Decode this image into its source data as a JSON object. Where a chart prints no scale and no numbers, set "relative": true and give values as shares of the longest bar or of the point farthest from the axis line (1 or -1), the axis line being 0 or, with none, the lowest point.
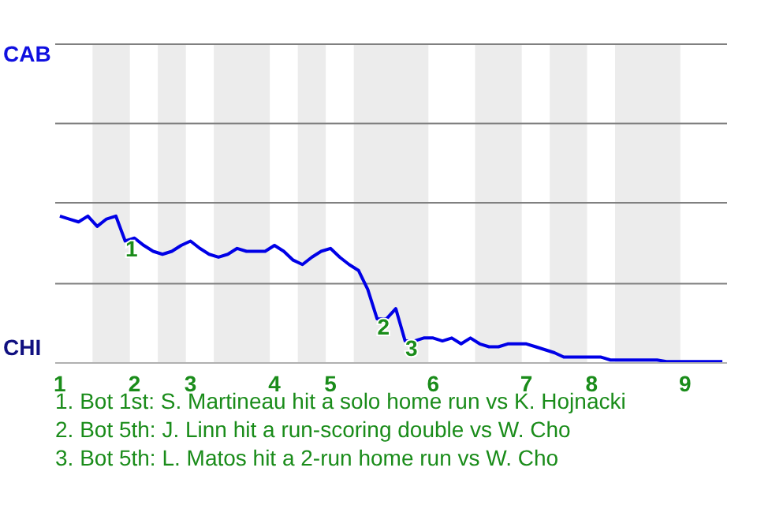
{
  "chart_data": {
    "type": "line",
    "relative": true,
    "categories": [
      "1",
      null,
      null,
      null,
      null,
      null,
      null,
      null,
      "2",
      null,
      null,
      null,
      null,
      null,
      "3",
      null,
      null,
      null,
      null,
      null,
      null,
      null,
      null,
      "4",
      null,
      null,
      null,
      null,
      null,
      "5",
      null,
      null,
      null,
      null,
      null,
      null,
      null,
      null,
      null,
      null,
      "6",
      null,
      null,
      null,
      null,
      null,
      null,
      null,
      null,
      null,
      "7",
      null,
      null,
      null,
      null,
      null,
      null,
      "8",
      null,
      null,
      null,
      null,
      null,
      null,
      null,
      null,
      null,
      "9",
      null,
      null,
      null,
      null
    ],
    "marker": "none",
    "line_style": "solid",
    "ref_lines": [
      {
        "axis": "y",
        "value": 0.54,
        "color": "#808080"
      },
      {
        "axis": "y",
        "value": 1.09,
        "color": "#808080"
      },
      {
        "axis": "y",
        "value": 1.63,
        "color": "#808080"
      },
      {
        "axis": "y",
        "value": 2.17,
        "color": "#808080"
      }
    ],
    "series": [
      {
        "color": "#0000e6",
        "values": [
          1,
          0.98,
          0.96,
          1,
          0.93,
          0.98,
          1,
          0.83,
          0.85,
          0.8,
          0.76,
          0.74,
          0.76,
          0.8,
          0.83,
          0.78,
          0.74,
          0.72,
          0.74,
          0.78,
          0.76,
          0.76,
          0.76,
          0.8,
          0.76,
          0.7,
          0.67,
          0.72,
          0.76,
          0.78,
          0.72,
          0.67,
          0.63,
          0.5,
          0.3,
          0.3,
          0.37,
          0.15,
          0.15,
          0.17,
          0.17,
          0.15,
          0.17,
          0.13,
          0.17,
          0.13,
          0.11,
          0.11,
          0.13,
          0.13,
          0.13,
          0.11,
          0.09,
          0.07,
          0.04,
          0.04,
          0.04,
          0.04,
          0.04,
          0.02,
          0.02,
          0.02,
          0.02,
          0.02,
          0.02,
          0.01,
          0.01,
          0.01,
          0.01,
          0.01,
          0.01,
          0.01
        ]
      }
    ],
    "annotations": [
      "CAB",
      "CHI",
      {
        "text": "1",
        "y": 0.83
      },
      {
        "text": "2",
        "y": 0.3
      },
      {
        "text": "3",
        "y": 0.15
      },
      "1. Bot 1st: S. Martineau hit a solo home run vs K. Hojnacki",
      "2. Bot 5th: J. Linn hit a run-scoring double vs W. Cho",
      "3. Bot 5th: L. Matos hit a 2-run home run vs W. Cho"
    ]
  }
}
